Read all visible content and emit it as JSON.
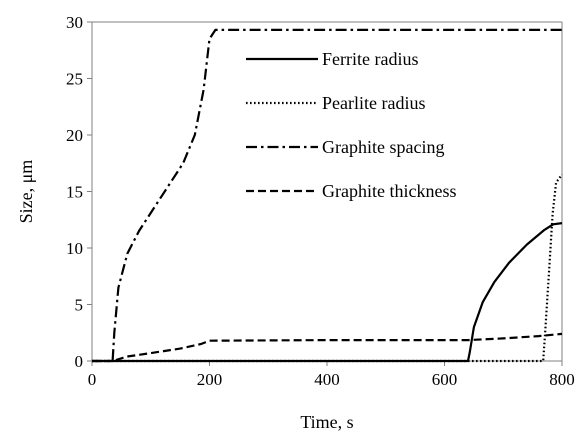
{
  "chart_data": {
    "type": "line",
    "title": "",
    "xlabel": "Time, s",
    "ylabel": "Size, μm",
    "xlim": [
      0,
      800
    ],
    "ylim": [
      0,
      30
    ],
    "xticks": [
      0,
      200,
      400,
      600,
      800
    ],
    "yticks": [
      0,
      5,
      10,
      15,
      20,
      25,
      30
    ],
    "xtick_labels": [
      "0",
      "200",
      "400",
      "600",
      "800"
    ],
    "ytick_labels": [
      "0",
      "5",
      "10",
      "15",
      "20",
      "25",
      "30"
    ],
    "grid": false,
    "legend_position": "top-right",
    "series": [
      {
        "name": "Ferrite radius",
        "dash": "solid",
        "points": [
          [
            0,
            0
          ],
          [
            640,
            0
          ],
          [
            643,
            0.8
          ],
          [
            650,
            3.0
          ],
          [
            665,
            5.2
          ],
          [
            685,
            7.0
          ],
          [
            710,
            8.7
          ],
          [
            740,
            10.3
          ],
          [
            770,
            11.6
          ],
          [
            785,
            12.1
          ],
          [
            800,
            12.2
          ]
        ]
      },
      {
        "name": "Pearlite radius",
        "dash": "dotted",
        "points": [
          [
            0,
            0
          ],
          [
            768,
            0
          ],
          [
            772,
            3.0
          ],
          [
            778,
            8.0
          ],
          [
            784,
            13.0
          ],
          [
            790,
            15.8
          ],
          [
            800,
            16.5
          ]
        ]
      },
      {
        "name": "Graphite spacing",
        "dash": "dashdot",
        "points": [
          [
            0,
            0
          ],
          [
            35,
            0
          ],
          [
            38,
            2.5
          ],
          [
            45,
            6.5
          ],
          [
            60,
            9.5
          ],
          [
            80,
            11.5
          ],
          [
            105,
            13.5
          ],
          [
            130,
            15.5
          ],
          [
            155,
            17.5
          ],
          [
            175,
            20.0
          ],
          [
            190,
            24.0
          ],
          [
            200,
            28.5
          ],
          [
            210,
            29.3
          ],
          [
            800,
            29.3
          ]
        ]
      },
      {
        "name": "Graphite thickness",
        "dash": "dashed",
        "points": [
          [
            0,
            0
          ],
          [
            35,
            0
          ],
          [
            60,
            0.4
          ],
          [
            100,
            0.7
          ],
          [
            150,
            1.1
          ],
          [
            185,
            1.5
          ],
          [
            200,
            1.8
          ],
          [
            400,
            1.85
          ],
          [
            640,
            1.85
          ],
          [
            700,
            2.0
          ],
          [
            760,
            2.2
          ],
          [
            800,
            2.4
          ]
        ]
      }
    ],
    "legend": [
      "Ferrite radius",
      "Pearlite radius",
      "Graphite spacing",
      "Graphite thickness"
    ],
    "colors": {
      "line": "#000000",
      "axis": "#808080",
      "background": "#ffffff"
    }
  }
}
